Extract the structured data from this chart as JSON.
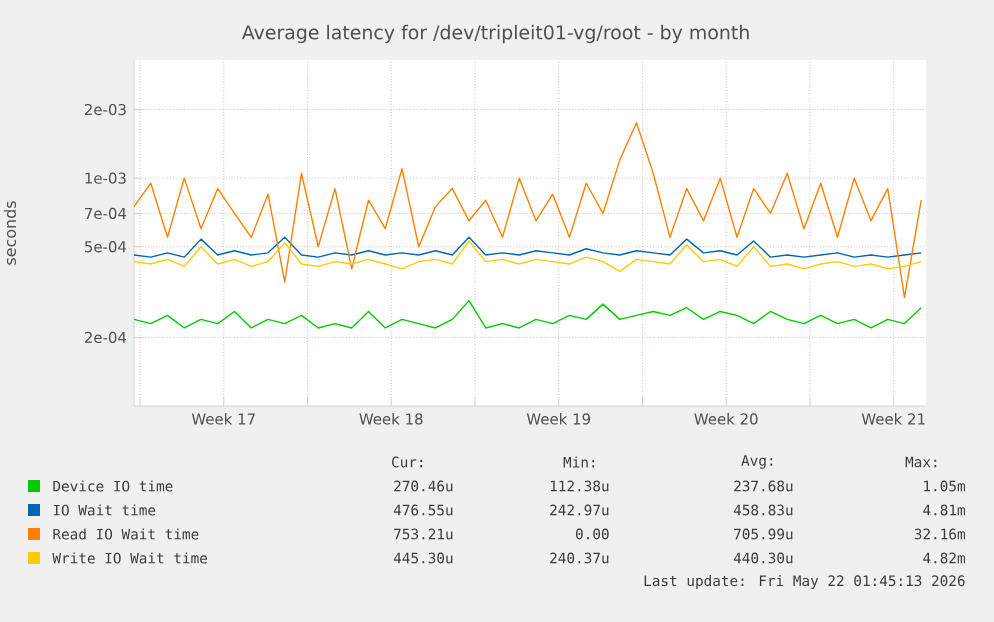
{
  "chart_data": {
    "type": "line",
    "title": "Average latency for /dev/tripleit01-vg/root - by month",
    "ylabel": "seconds",
    "x": [
      "2026-04-19T00:00",
      "2026-04-19T16:48",
      "2026-04-20T09:36",
      "2026-04-21T02:24",
      "2026-04-21T19:12",
      "2026-04-22T12:00",
      "2026-04-23T04:48",
      "2026-04-23T21:36",
      "2026-04-24T14:24",
      "2026-04-25T07:12",
      "2026-04-26T00:00",
      "2026-04-26T16:48",
      "2026-04-27T09:36",
      "2026-04-28T02:24",
      "2026-04-28T19:12",
      "2026-04-29T12:00",
      "2026-04-30T04:48",
      "2026-04-30T21:36",
      "2026-05-01T14:24",
      "2026-05-02T07:12",
      "2026-05-03T00:00",
      "2026-05-03T16:48",
      "2026-05-04T09:36",
      "2026-05-05T02:24",
      "2026-05-05T19:12",
      "2026-05-06T12:00",
      "2026-05-07T04:48",
      "2026-05-07T21:36",
      "2026-05-08T14:24",
      "2026-05-09T07:12",
      "2026-05-10T00:00",
      "2026-05-10T16:48",
      "2026-05-11T09:36",
      "2026-05-12T02:24",
      "2026-05-12T19:12",
      "2026-05-13T12:00",
      "2026-05-14T04:48",
      "2026-05-14T21:36",
      "2026-05-15T14:24",
      "2026-05-16T07:12",
      "2026-05-17T00:00",
      "2026-05-17T16:48",
      "2026-05-18T09:36",
      "2026-05-19T02:24",
      "2026-05-19T19:12",
      "2026-05-20T12:00",
      "2026-05-21T04:48",
      "2026-05-21T21:36"
    ],
    "series": [
      {
        "name": "Device IO time",
        "color": "#00cc00",
        "values": [
          0.00024,
          0.00023,
          0.00025,
          0.00022,
          0.00024,
          0.00023,
          0.00026,
          0.00022,
          0.00024,
          0.00023,
          0.00025,
          0.00022,
          0.00023,
          0.00022,
          0.00026,
          0.00022,
          0.00024,
          0.00023,
          0.00022,
          0.00024,
          0.00029,
          0.00022,
          0.00023,
          0.00022,
          0.00024,
          0.00023,
          0.00025,
          0.00024,
          0.00028,
          0.00024,
          0.00025,
          0.00026,
          0.00025,
          0.00027,
          0.00024,
          0.00026,
          0.00025,
          0.00023,
          0.00026,
          0.00024,
          0.00023,
          0.00025,
          0.00023,
          0.00024,
          0.00022,
          0.00024,
          0.00023,
          0.00027
        ]
      },
      {
        "name": "IO Wait time",
        "color": "#0066b3",
        "values": [
          0.00046,
          0.00045,
          0.00047,
          0.00045,
          0.00054,
          0.00046,
          0.00048,
          0.00046,
          0.00047,
          0.00055,
          0.00046,
          0.00045,
          0.00047,
          0.00046,
          0.00048,
          0.00046,
          0.00047,
          0.00046,
          0.00048,
          0.00046,
          0.00055,
          0.00046,
          0.00047,
          0.00046,
          0.00048,
          0.00047,
          0.00046,
          0.00049,
          0.00047,
          0.00046,
          0.00048,
          0.00047,
          0.00046,
          0.00054,
          0.00047,
          0.00048,
          0.00046,
          0.00053,
          0.00045,
          0.00046,
          0.00045,
          0.00046,
          0.00047,
          0.00045,
          0.00046,
          0.00045,
          0.00046,
          0.00047
        ]
      },
      {
        "name": "Read IO Wait time",
        "color": "#ff8000",
        "values": [
          0.00075,
          0.00095,
          0.00055,
          0.001,
          0.0006,
          0.0009,
          0.0007,
          0.00055,
          0.00085,
          0.00035,
          0.00105,
          0.0005,
          0.0009,
          0.0004,
          0.0008,
          0.0006,
          0.0011,
          0.0005,
          0.00075,
          0.0009,
          0.00065,
          0.0008,
          0.00055,
          0.001,
          0.00065,
          0.00085,
          0.00055,
          0.00095,
          0.0007,
          0.0012,
          0.00175,
          0.00105,
          0.00055,
          0.0009,
          0.00065,
          0.001,
          0.00055,
          0.0009,
          0.0007,
          0.00105,
          0.0006,
          0.00095,
          0.00055,
          0.001,
          0.00065,
          0.0009,
          0.0003,
          0.0008
        ]
      },
      {
        "name": "Write IO Wait time",
        "color": "#ffcc00",
        "values": [
          0.00043,
          0.00042,
          0.00044,
          0.00041,
          0.0005,
          0.00042,
          0.00044,
          0.00041,
          0.00043,
          0.00052,
          0.00042,
          0.00041,
          0.00043,
          0.00042,
          0.00044,
          0.00042,
          0.0004,
          0.00043,
          0.00044,
          0.00042,
          0.00053,
          0.00043,
          0.00044,
          0.00042,
          0.00044,
          0.00043,
          0.00042,
          0.00045,
          0.00043,
          0.00039,
          0.00044,
          0.00043,
          0.00042,
          0.00051,
          0.00043,
          0.00044,
          0.00041,
          0.0005,
          0.00041,
          0.00042,
          0.0004,
          0.00042,
          0.00043,
          0.00041,
          0.00042,
          0.0004,
          0.00041,
          0.00043
        ]
      }
    ],
    "log": "y",
    "xlim": [
      "2026-04-19T00:00",
      "2026-05-22T02:24"
    ],
    "xticks": [
      {
        "value": "2026-04-19T06:00",
        "label": null
      },
      {
        "value": "2026-04-22T18:00",
        "label": "Week 17"
      },
      {
        "value": "2026-04-26T06:00",
        "label": null
      },
      {
        "value": "2026-04-29T18:00",
        "label": "Week 18"
      },
      {
        "value": "2026-05-03T06:00",
        "label": null
      },
      {
        "value": "2026-05-06T18:00",
        "label": "Week 19"
      },
      {
        "value": "2026-05-10T06:00",
        "label": null
      },
      {
        "value": "2026-05-13T18:00",
        "label": "Week 20"
      },
      {
        "value": "2026-05-17T06:00",
        "label": null
      },
      {
        "value": "2026-05-20T18:00",
        "label": "Week 21"
      }
    ],
    "ylim": [
      0.0001,
      0.0033
    ],
    "yticks": [
      {
        "value": 0.0002,
        "label": "2e-04"
      },
      {
        "value": 0.0005,
        "label": "5e-04"
      },
      {
        "value": 0.0007,
        "label": "7e-04"
      },
      {
        "value": 0.001,
        "label": "1e-03"
      },
      {
        "value": 0.002,
        "label": "2e-03"
      }
    ],
    "grid": true,
    "legend": "bottom",
    "marker": "none",
    "line_style": "solid",
    "annotations": [
      "Cur:",
      "Min:",
      "Avg:",
      "Max:",
      "270.46u",
      "112.38u",
      "237.68u",
      "1.05m",
      "476.55u",
      "242.97u",
      "458.83u",
      "4.81m",
      "753.21u",
      "0.00",
      "705.99u",
      "32.16m",
      "445.30u",
      "240.37u",
      "440.30u",
      "4.82m",
      "Last update: Fri May 22 01:45:13 2026"
    ]
  }
}
